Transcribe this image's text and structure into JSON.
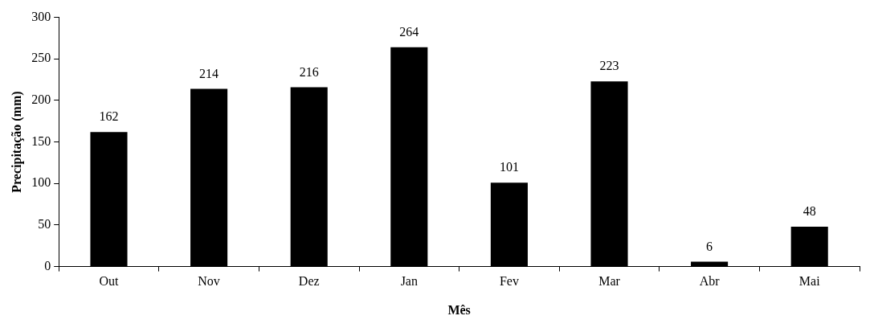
{
  "chart_data": {
    "type": "bar",
    "xlabel": "Mês",
    "ylabel": "Precipitação (mm)",
    "categories": [
      "Out",
      "Nov",
      "Dez",
      "Jan",
      "Fev",
      "Mar",
      "Abr",
      "Mai"
    ],
    "values": [
      162,
      214,
      216,
      264,
      101,
      223,
      6,
      48
    ],
    "color": "#000000",
    "ylim": [
      0,
      300
    ],
    "yticks": [
      0,
      50,
      100,
      150,
      200,
      250,
      300
    ],
    "data_labels": true,
    "grid": false,
    "legend": false
  }
}
